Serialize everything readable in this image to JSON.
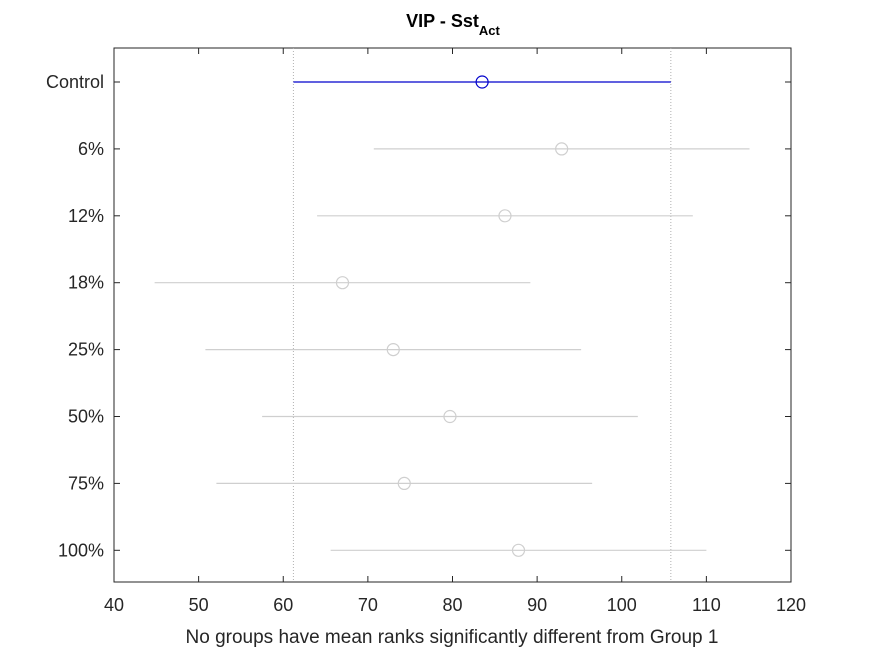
{
  "chart_data": {
    "type": "interval",
    "title": "VIP - Sst",
    "title_subscript": "Act",
    "xlabel": "No groups have mean ranks significantly different from Group 1",
    "ylabel": "",
    "xlim": [
      40,
      120
    ],
    "xticks": [
      40,
      50,
      60,
      70,
      80,
      90,
      100,
      110,
      120
    ],
    "grid": false,
    "reference_lines": [
      61.2,
      105.8
    ],
    "highlight_color": "#0000cc",
    "dim_color": "#cfcfcf",
    "groups": [
      {
        "label": "Control",
        "mean": 83.5,
        "lower": 61.2,
        "upper": 105.8,
        "highlighted": true
      },
      {
        "label": "6%",
        "mean": 92.9,
        "lower": 70.7,
        "upper": 115.1,
        "highlighted": false
      },
      {
        "label": "12%",
        "mean": 86.2,
        "lower": 64.0,
        "upper": 108.4,
        "highlighted": false
      },
      {
        "label": "18%",
        "mean": 67.0,
        "lower": 44.8,
        "upper": 89.2,
        "highlighted": false
      },
      {
        "label": "25%",
        "mean": 73.0,
        "lower": 50.8,
        "upper": 95.2,
        "highlighted": false
      },
      {
        "label": "50%",
        "mean": 79.7,
        "lower": 57.5,
        "upper": 101.9,
        "highlighted": false
      },
      {
        "label": "75%",
        "mean": 74.3,
        "lower": 52.1,
        "upper": 96.5,
        "highlighted": false
      },
      {
        "label": "100%",
        "mean": 87.8,
        "lower": 65.6,
        "upper": 110.0,
        "highlighted": false
      }
    ]
  }
}
